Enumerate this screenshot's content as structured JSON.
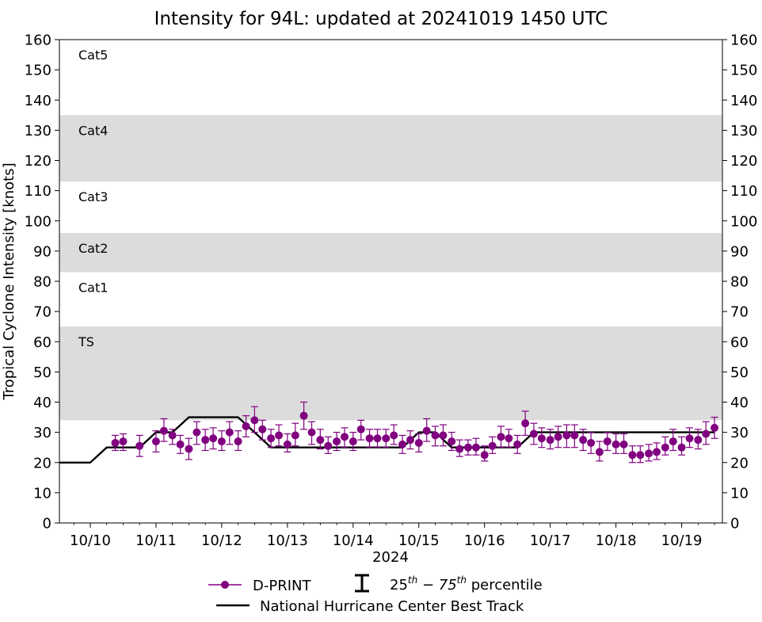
{
  "chart_data": {
    "type": "scatter",
    "title": "Intensity for 94L: updated at 20241019 1450 UTC",
    "ylabel": "Tropical Cyclone Intensity [knots]",
    "xlabel": "2024",
    "ylim": [
      0,
      160
    ],
    "yticks": [
      0,
      10,
      20,
      30,
      40,
      50,
      60,
      70,
      80,
      90,
      100,
      110,
      120,
      130,
      140,
      150,
      160
    ],
    "xlim_days": [
      9.53,
      19.62
    ],
    "xticks": [
      {
        "day": 10,
        "label": "10/10"
      },
      {
        "day": 11,
        "label": "10/11"
      },
      {
        "day": 12,
        "label": "10/12"
      },
      {
        "day": 13,
        "label": "10/13"
      },
      {
        "day": 14,
        "label": "10/14"
      },
      {
        "day": 15,
        "label": "10/15"
      },
      {
        "day": 16,
        "label": "10/16"
      },
      {
        "day": 17,
        "label": "10/17"
      },
      {
        "day": 18,
        "label": "10/18"
      },
      {
        "day": 19,
        "label": "10/19"
      }
    ],
    "bands": [
      {
        "label": "Cat5",
        "from": 137,
        "to": 160,
        "shaded": false
      },
      {
        "label": "Cat4",
        "from": 113,
        "to": 135,
        "shaded": true
      },
      {
        "label": "Cat3",
        "from": 96,
        "to": 113,
        "shaded": false
      },
      {
        "label": "Cat2",
        "from": 83,
        "to": 96,
        "shaded": true
      },
      {
        "label": "Cat1",
        "from": 64,
        "to": 83,
        "shaded": false
      },
      {
        "label": "TS",
        "from": 34,
        "to": 65,
        "shaded": true
      }
    ],
    "band_color": "#dcdcdc",
    "series": [
      {
        "name": "D-PRINT",
        "color": "#800080",
        "points": [
          {
            "x": 10.38,
            "y": 26.5,
            "lo": 24,
            "hi": 29
          },
          {
            "x": 10.5,
            "y": 27,
            "lo": 24,
            "hi": 29.5
          },
          {
            "x": 10.75,
            "y": 25.5,
            "lo": 22,
            "hi": 29
          },
          {
            "x": 11.0,
            "y": 27,
            "lo": 23.5,
            "hi": 30.5
          },
          {
            "x": 11.12,
            "y": 30.5,
            "lo": 27,
            "hi": 34.5
          },
          {
            "x": 11.25,
            "y": 29,
            "lo": 26,
            "hi": 31
          },
          {
            "x": 11.37,
            "y": 26,
            "lo": 23,
            "hi": 29
          },
          {
            "x": 11.5,
            "y": 24.5,
            "lo": 21,
            "hi": 28
          },
          {
            "x": 11.62,
            "y": 30,
            "lo": 26,
            "hi": 33.5
          },
          {
            "x": 11.75,
            "y": 27.5,
            "lo": 24,
            "hi": 31
          },
          {
            "x": 11.87,
            "y": 28,
            "lo": 24.5,
            "hi": 31.5
          },
          {
            "x": 12.0,
            "y": 27,
            "lo": 24,
            "hi": 30.5
          },
          {
            "x": 12.12,
            "y": 30,
            "lo": 26,
            "hi": 33.5
          },
          {
            "x": 12.25,
            "y": 27,
            "lo": 24,
            "hi": 30.5
          },
          {
            "x": 12.37,
            "y": 32,
            "lo": 28.5,
            "hi": 35.5
          },
          {
            "x": 12.5,
            "y": 34,
            "lo": 30,
            "hi": 38.5
          },
          {
            "x": 12.62,
            "y": 31,
            "lo": 27.5,
            "hi": 34
          },
          {
            "x": 12.75,
            "y": 28,
            "lo": 25,
            "hi": 31
          },
          {
            "x": 12.87,
            "y": 29,
            "lo": 25.5,
            "hi": 32.5
          },
          {
            "x": 13.0,
            "y": 26,
            "lo": 23.5,
            "hi": 29.5
          },
          {
            "x": 13.12,
            "y": 29,
            "lo": 25.5,
            "hi": 33
          },
          {
            "x": 13.25,
            "y": 35.5,
            "lo": 31,
            "hi": 40
          },
          {
            "x": 13.37,
            "y": 30,
            "lo": 26,
            "hi": 33.5
          },
          {
            "x": 13.5,
            "y": 27.5,
            "lo": 24.5,
            "hi": 31
          },
          {
            "x": 13.62,
            "y": 25.5,
            "lo": 23,
            "hi": 28.5
          },
          {
            "x": 13.75,
            "y": 27,
            "lo": 24,
            "hi": 30
          },
          {
            "x": 13.87,
            "y": 28.5,
            "lo": 25,
            "hi": 31.5
          },
          {
            "x": 14.0,
            "y": 27,
            "lo": 24,
            "hi": 30
          },
          {
            "x": 14.12,
            "y": 31,
            "lo": 27.5,
            "hi": 34
          },
          {
            "x": 14.25,
            "y": 28,
            "lo": 25,
            "hi": 31
          },
          {
            "x": 14.37,
            "y": 28,
            "lo": 25,
            "hi": 31
          },
          {
            "x": 14.5,
            "y": 28,
            "lo": 25,
            "hi": 31
          },
          {
            "x": 14.62,
            "y": 29,
            "lo": 26,
            "hi": 32.5
          },
          {
            "x": 14.75,
            "y": 26,
            "lo": 23,
            "hi": 29
          },
          {
            "x": 14.87,
            "y": 27.5,
            "lo": 24.5,
            "hi": 30.5
          },
          {
            "x": 15.0,
            "y": 26.5,
            "lo": 23.5,
            "hi": 29.5
          },
          {
            "x": 15.12,
            "y": 30.5,
            "lo": 27,
            "hi": 34.5
          },
          {
            "x": 15.25,
            "y": 29,
            "lo": 25.5,
            "hi": 32
          },
          {
            "x": 15.37,
            "y": 29,
            "lo": 25.5,
            "hi": 32.5
          },
          {
            "x": 15.5,
            "y": 27,
            "lo": 24,
            "hi": 30
          },
          {
            "x": 15.62,
            "y": 24.5,
            "lo": 22,
            "hi": 27.5
          },
          {
            "x": 15.75,
            "y": 25,
            "lo": 22.5,
            "hi": 27.5
          },
          {
            "x": 15.87,
            "y": 25,
            "lo": 22.5,
            "hi": 28
          },
          {
            "x": 16.0,
            "y": 22.5,
            "lo": 20.5,
            "hi": 25.5
          },
          {
            "x": 16.12,
            "y": 25.5,
            "lo": 23,
            "hi": 28.5
          },
          {
            "x": 16.25,
            "y": 28.5,
            "lo": 25,
            "hi": 32
          },
          {
            "x": 16.37,
            "y": 28,
            "lo": 25,
            "hi": 31
          },
          {
            "x": 16.5,
            "y": 26,
            "lo": 23,
            "hi": 29
          },
          {
            "x": 16.62,
            "y": 33,
            "lo": 29,
            "hi": 37
          },
          {
            "x": 16.75,
            "y": 29.5,
            "lo": 26,
            "hi": 33
          },
          {
            "x": 16.87,
            "y": 28,
            "lo": 25,
            "hi": 31.5
          },
          {
            "x": 17.0,
            "y": 27.5,
            "lo": 24.5,
            "hi": 31
          },
          {
            "x": 17.12,
            "y": 28.5,
            "lo": 25,
            "hi": 32
          },
          {
            "x": 17.25,
            "y": 29,
            "lo": 25,
            "hi": 32.5
          },
          {
            "x": 17.37,
            "y": 29,
            "lo": 25,
            "hi": 32.5
          },
          {
            "x": 17.5,
            "y": 27.5,
            "lo": 24,
            "hi": 31
          },
          {
            "x": 17.62,
            "y": 26.5,
            "lo": 23,
            "hi": 30
          },
          {
            "x": 17.75,
            "y": 23.5,
            "lo": 20.5,
            "hi": 27
          },
          {
            "x": 17.87,
            "y": 27,
            "lo": 24,
            "hi": 30
          },
          {
            "x": 18.0,
            "y": 26,
            "lo": 23,
            "hi": 29.5
          },
          {
            "x": 18.12,
            "y": 26,
            "lo": 23,
            "hi": 29.5
          },
          {
            "x": 18.25,
            "y": 22.5,
            "lo": 20,
            "hi": 25.5
          },
          {
            "x": 18.37,
            "y": 22.5,
            "lo": 20,
            "hi": 25.5
          },
          {
            "x": 18.5,
            "y": 23,
            "lo": 20.5,
            "hi": 26
          },
          {
            "x": 18.62,
            "y": 23.5,
            "lo": 21,
            "hi": 26.5
          },
          {
            "x": 18.75,
            "y": 25,
            "lo": 22.5,
            "hi": 28.5
          },
          {
            "x": 18.87,
            "y": 27,
            "lo": 24,
            "hi": 31
          },
          {
            "x": 19.0,
            "y": 25,
            "lo": 22.5,
            "hi": 28.5
          },
          {
            "x": 19.12,
            "y": 28,
            "lo": 25,
            "hi": 31.5
          },
          {
            "x": 19.25,
            "y": 27.5,
            "lo": 24.5,
            "hi": 31
          },
          {
            "x": 19.37,
            "y": 29.5,
            "lo": 26,
            "hi": 33.5
          },
          {
            "x": 19.5,
            "y": 31.5,
            "lo": 28,
            "hi": 35
          }
        ]
      },
      {
        "name": "National Hurricane Center Best Track",
        "color": "#000000",
        "points": [
          {
            "x": 9.53,
            "y": 20
          },
          {
            "x": 10.0,
            "y": 20
          },
          {
            "x": 10.25,
            "y": 25
          },
          {
            "x": 10.75,
            "y": 25
          },
          {
            "x": 11.0,
            "y": 30
          },
          {
            "x": 11.25,
            "y": 30
          },
          {
            "x": 11.5,
            "y": 35
          },
          {
            "x": 12.25,
            "y": 35
          },
          {
            "x": 12.5,
            "y": 30
          },
          {
            "x": 12.75,
            "y": 25
          },
          {
            "x": 14.75,
            "y": 25
          },
          {
            "x": 15.0,
            "y": 30
          },
          {
            "x": 15.25,
            "y": 30
          },
          {
            "x": 15.5,
            "y": 25
          },
          {
            "x": 16.5,
            "y": 25
          },
          {
            "x": 16.75,
            "y": 30
          },
          {
            "x": 19.5,
            "y": 30
          }
        ]
      }
    ],
    "legend": {
      "placement": "bottom",
      "dprint": "D-PRINT",
      "percentile_sup1": "th",
      "percentile_sup2": "th",
      "percentile_text": "25",
      "percentile_mid": " − 75",
      "percentile_suffix": " percentile",
      "best_track": "National Hurricane Center Best Track"
    }
  }
}
